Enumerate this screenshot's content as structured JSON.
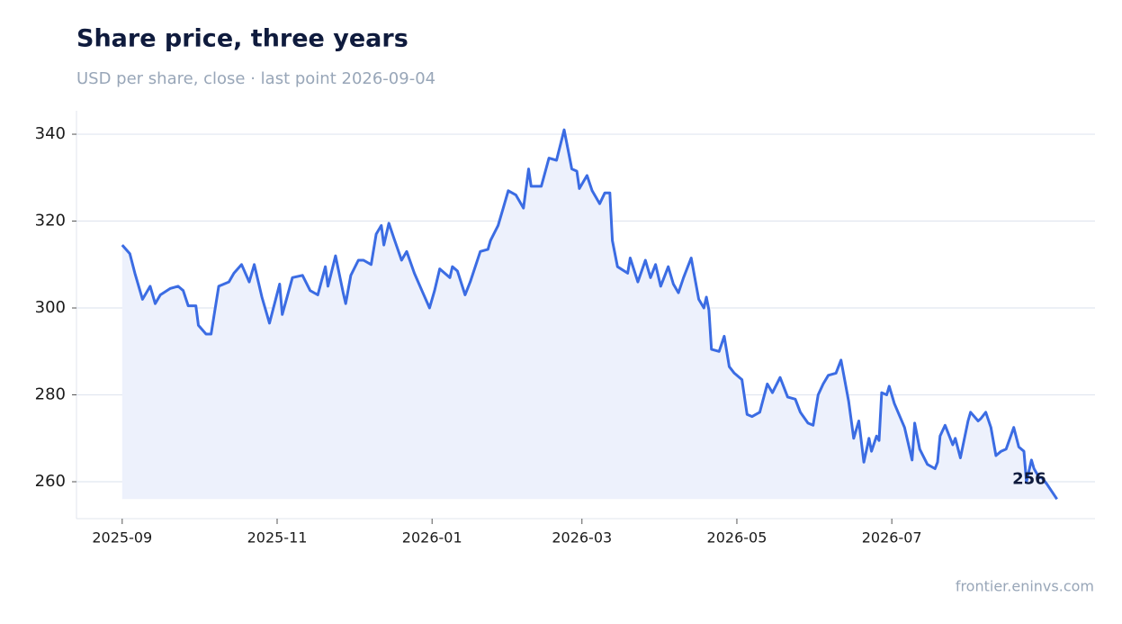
{
  "chart_data": {
    "type": "line",
    "title": "Share price, three years",
    "subtitle": "USD per share, close · last point 2026-09-04",
    "source": "frontier.eninvs.com",
    "x": [
      "2025-09-01",
      "2025-09-04",
      "2025-09-06",
      "2025-09-09",
      "2025-09-12",
      "2025-09-14",
      "2025-09-16",
      "2025-09-20",
      "2025-09-23",
      "2025-09-25",
      "2025-09-27",
      "2025-09-30",
      "2025-10-01",
      "2025-10-04",
      "2025-10-06",
      "2025-10-09",
      "2025-10-13",
      "2025-10-15",
      "2025-10-18",
      "2025-10-21",
      "2025-10-23",
      "2025-10-26",
      "2025-10-29",
      "2025-11-02",
      "2025-11-03",
      "2025-11-07",
      "2025-11-11",
      "2025-11-14",
      "2025-11-17",
      "2025-11-20",
      "2025-11-21",
      "2025-11-24",
      "2025-11-27",
      "2025-11-28",
      "2025-11-30",
      "2025-12-03",
      "2025-12-05",
      "2025-12-08",
      "2025-12-10",
      "2025-12-12",
      "2025-12-13",
      "2025-12-15",
      "2025-12-17",
      "2025-12-20",
      "2025-12-22",
      "2025-12-25",
      "2025-12-28",
      "2025-12-31",
      "2026-01-02",
      "2026-01-04",
      "2026-01-08",
      "2026-01-09",
      "2026-01-11",
      "2026-01-14",
      "2026-01-16",
      "2026-01-20",
      "2026-01-23",
      "2026-01-24",
      "2026-01-27",
      "2026-01-29",
      "2026-01-31",
      "2026-02-03",
      "2026-02-06",
      "2026-02-08",
      "2026-02-09",
      "2026-02-13",
      "2026-02-16",
      "2026-02-19",
      "2026-02-22",
      "2026-02-24",
      "2026-02-25",
      "2026-02-27",
      "2026-02-28",
      "2026-03-03",
      "2026-03-05",
      "2026-03-08",
      "2026-03-10",
      "2026-03-12",
      "2026-03-13",
      "2026-03-15",
      "2026-03-19",
      "2026-03-20",
      "2026-03-23",
      "2026-03-26",
      "2026-03-28",
      "2026-03-30",
      "2026-04-01",
      "2026-04-04",
      "2026-04-06",
      "2026-04-08",
      "2026-04-10",
      "2026-04-13",
      "2026-04-16",
      "2026-04-18",
      "2026-04-19",
      "2026-04-20",
      "2026-04-21",
      "2026-04-24",
      "2026-04-26",
      "2026-04-28",
      "2026-04-30",
      "2026-05-03",
      "2026-05-05",
      "2026-05-07",
      "2026-05-10",
      "2026-05-13",
      "2026-05-15",
      "2026-05-18",
      "2026-05-21",
      "2026-05-24",
      "2026-05-26",
      "2026-05-29",
      "2026-05-31",
      "2026-06-02",
      "2026-06-04",
      "2026-06-06",
      "2026-06-09",
      "2026-06-11",
      "2026-06-14",
      "2026-06-16",
      "2026-06-18",
      "2026-06-20",
      "2026-06-22",
      "2026-06-23",
      "2026-06-25",
      "2026-06-26",
      "2026-06-27",
      "2026-06-29",
      "2026-06-30",
      "2026-07-02",
      "2026-07-06",
      "2026-07-09",
      "2026-07-10",
      "2026-07-12",
      "2026-07-15",
      "2026-07-18",
      "2026-07-19",
      "2026-07-20",
      "2026-07-22",
      "2026-07-25",
      "2026-07-26",
      "2026-07-28",
      "2026-07-31",
      "2026-08-01",
      "2026-08-04",
      "2026-08-05",
      "2026-08-07",
      "2026-08-09",
      "2026-08-11",
      "2026-08-13",
      "2026-08-15",
      "2026-08-18",
      "2026-08-20",
      "2026-08-22",
      "2026-08-23",
      "2026-08-25",
      "2026-08-26",
      "2026-08-28",
      "2026-08-29",
      "2026-08-31",
      "2026-09-04"
    ],
    "series": [
      {
        "name": "Close",
        "color": "#3b6ce3",
        "fill": "#edf1fc",
        "values": [
          314.5,
          312.5,
          308,
          302,
          305,
          301,
          303,
          304.5,
          305,
          304,
          300.5,
          300.5,
          296,
          294,
          294,
          305,
          306,
          308,
          310,
          306,
          310,
          302.5,
          296.5,
          305.5,
          298.5,
          307,
          307.5,
          304,
          303,
          309.5,
          305,
          312,
          303.5,
          301,
          307.5,
          311,
          311,
          310,
          317,
          319,
          314.5,
          319.5,
          316,
          311,
          313,
          308,
          304,
          300,
          304,
          309,
          307,
          309.5,
          308.5,
          303,
          306,
          313,
          313.5,
          315.5,
          319,
          323,
          327,
          326,
          323,
          332,
          328,
          328,
          334.5,
          334,
          341,
          335,
          332,
          331.5,
          327.5,
          330.5,
          327,
          324,
          326.5,
          326.5,
          315.5,
          309.5,
          308,
          311.5,
          306,
          311,
          307,
          310,
          305,
          309.5,
          305.5,
          303.5,
          307,
          311.5,
          302,
          300,
          302.5,
          299.5,
          290.5,
          290,
          293.5,
          286.5,
          285,
          283.5,
          275.5,
          275,
          276,
          282.5,
          280.5,
          284,
          279.5,
          279,
          276,
          273.5,
          273,
          280,
          282.5,
          284.5,
          285,
          288,
          278.5,
          270,
          274,
          264.5,
          270,
          267,
          270.5,
          269.5,
          280.5,
          280,
          282,
          278,
          272.5,
          265,
          273.5,
          267.5,
          264,
          263,
          264.5,
          270.5,
          273,
          268.5,
          270,
          265.5,
          274,
          276,
          274,
          274.5,
          276,
          272.5,
          266,
          267,
          267.5,
          272.5,
          268,
          267,
          260,
          265,
          263,
          261,
          261,
          259.5,
          256
        ]
      }
    ],
    "xlim": [
      "2025-08-14",
      "2026-09-19"
    ],
    "xticks": [
      {
        "value": "2025-09-01",
        "label": "2025-09"
      },
      {
        "value": "2025-11-01",
        "label": "2025-11"
      },
      {
        "value": "2026-01-01",
        "label": "2026-01"
      },
      {
        "value": "2026-03-01",
        "label": "2026-03"
      },
      {
        "value": "2026-05-01",
        "label": "2026-05"
      },
      {
        "value": "2026-07-01",
        "label": "2026-07"
      }
    ],
    "ylim": [
      251.5,
      345.4
    ],
    "yticks": [
      260,
      280,
      300,
      320,
      340
    ],
    "grid": true
  }
}
